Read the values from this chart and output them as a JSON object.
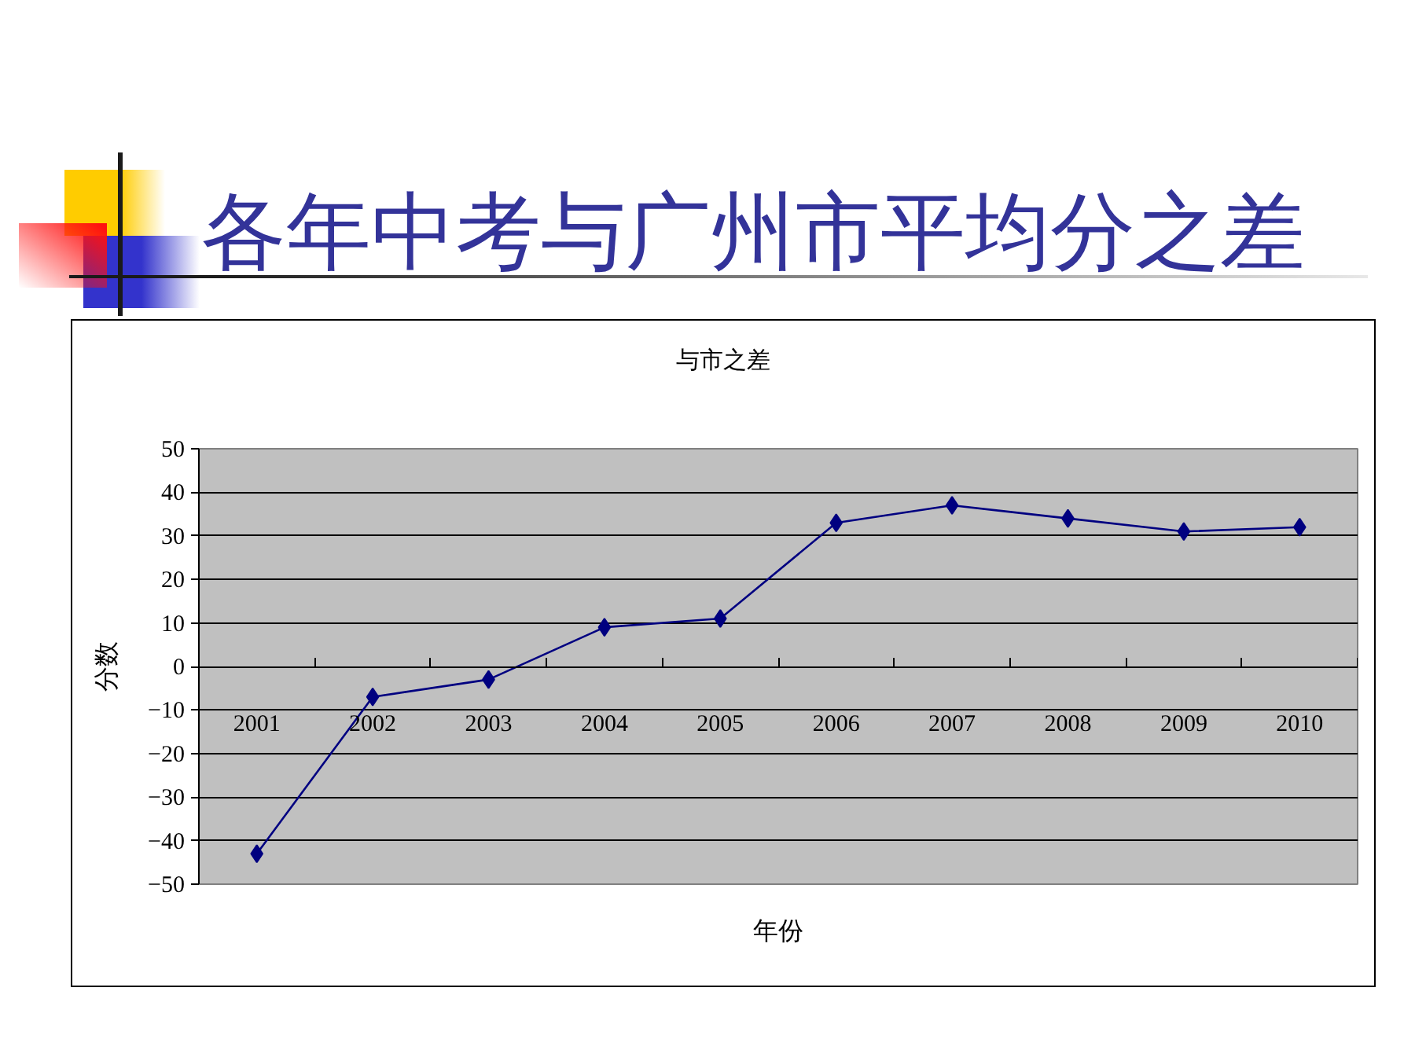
{
  "chart_data": {
    "type": "line",
    "title": "各年中考与广州市平均分之差",
    "subtitle": "与市之差",
    "xlabel": "年份",
    "ylabel": "分数",
    "categories": [
      "2001",
      "2002",
      "2003",
      "2004",
      "2005",
      "2006",
      "2007",
      "2008",
      "2009",
      "2010"
    ],
    "series": [
      {
        "color": "#000080",
        "values": [
          -43,
          -7,
          -3,
          9,
          11,
          33,
          37,
          34,
          31,
          32
        ]
      }
    ],
    "ylim": [
      -50,
      50
    ],
    "yticks": [
      -50,
      -40,
      -30,
      -20,
      -10,
      0,
      10,
      20,
      30,
      40,
      50
    ],
    "grid": "y",
    "marker": "diamond",
    "line_style": "solid"
  }
}
